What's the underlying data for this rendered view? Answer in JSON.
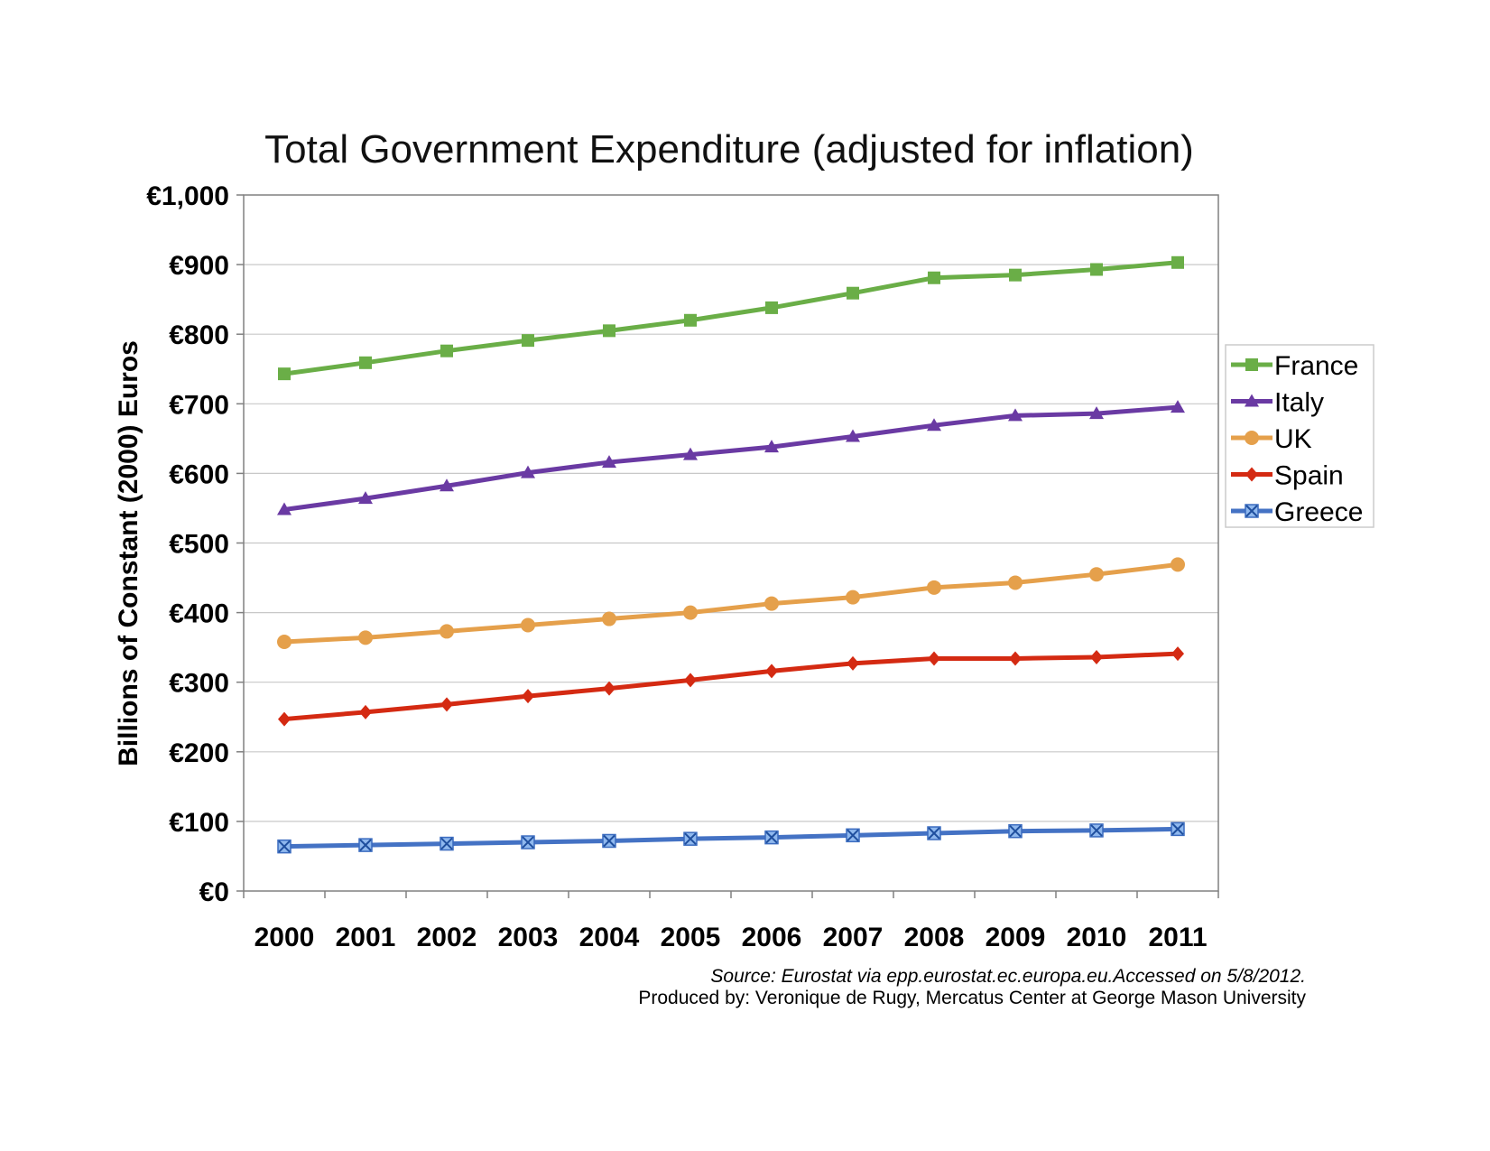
{
  "chart_data": {
    "type": "line",
    "title": "Total Government Expenditure (adjusted for inflation)",
    "ylabel": "Billions of Constant (2000) Euros",
    "xlabel": "",
    "categories": [
      "2000",
      "2001",
      "2002",
      "2003",
      "2004",
      "2005",
      "2006",
      "2007",
      "2008",
      "2009",
      "2010",
      "2011"
    ],
    "ylim": [
      0,
      1000
    ],
    "yticks": [
      "€0",
      "€100",
      "€200",
      "€300",
      "€400",
      "€500",
      "€600",
      "€700",
      "€800",
      "€900",
      "€1,000"
    ],
    "grid": true,
    "legend_position": "right",
    "series": [
      {
        "name": "France",
        "color": "#6aae47",
        "marker": "square",
        "values": [
          743,
          759,
          776,
          791,
          805,
          820,
          838,
          859,
          881,
          885,
          893,
          903
        ]
      },
      {
        "name": "Italy",
        "color": "#6a3aa3",
        "marker": "triangle",
        "values": [
          548,
          564,
          582,
          601,
          616,
          627,
          638,
          653,
          669,
          683,
          686,
          695
        ]
      },
      {
        "name": "UK",
        "color": "#e5a04b",
        "marker": "circle",
        "values": [
          358,
          364,
          373,
          382,
          391,
          400,
          413,
          422,
          436,
          443,
          455,
          469
        ]
      },
      {
        "name": "Spain",
        "color": "#d42a12",
        "marker": "diamond",
        "values": [
          247,
          257,
          268,
          280,
          291,
          303,
          316,
          327,
          334,
          334,
          336,
          341
        ]
      },
      {
        "name": "Greece",
        "color": "#4472c4",
        "marker": "x-square",
        "values": [
          64,
          66,
          68,
          70,
          72,
          75,
          77,
          80,
          83,
          86,
          87,
          89
        ]
      }
    ]
  },
  "footer": {
    "source": "Source: Eurostat via  epp.eurostat.ec.europa.eu.Accessed on 5/8/2012.",
    "produced": "Produced by: Veronique de Rugy, Mercatus Center at George Mason University"
  }
}
